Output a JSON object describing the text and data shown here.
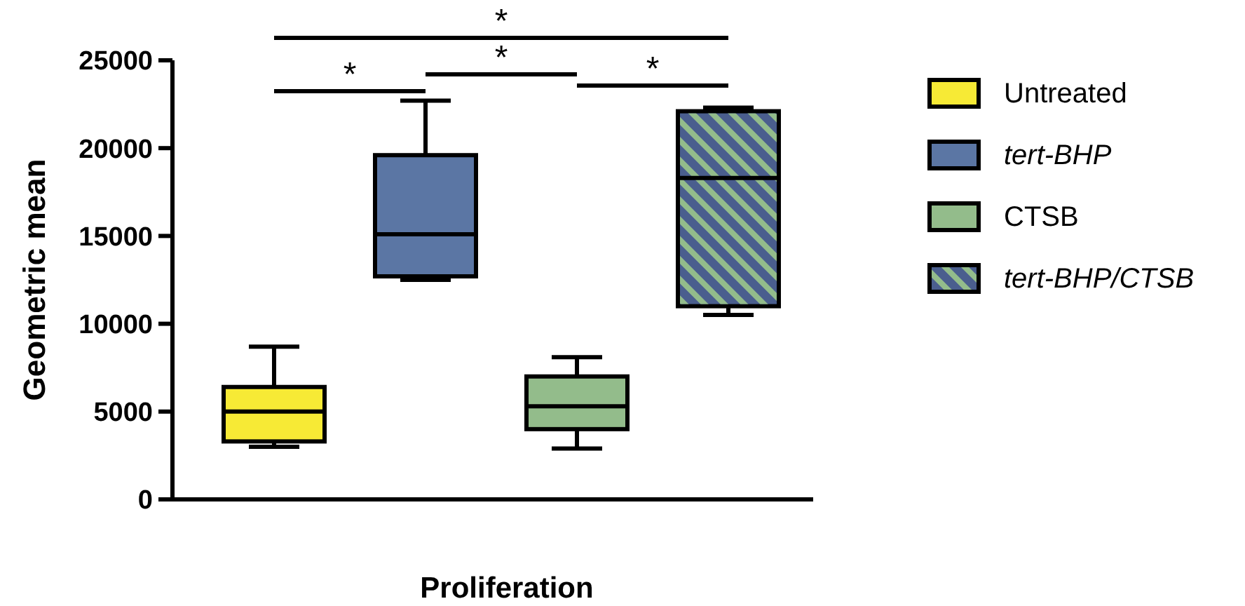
{
  "chart_data": {
    "type": "box",
    "xlabel": "Proliferation",
    "ylabel": "Geometric mean",
    "categories": [
      null
    ],
    "ylim": [
      0,
      25000
    ],
    "yticks": [
      0,
      5000,
      10000,
      15000,
      20000,
      25000
    ],
    "grid": false,
    "legend": "right",
    "annotations": [
      "*",
      "*",
      "*",
      "*"
    ],
    "series": [
      {
        "name": "Untreated",
        "color": "#f7ea35",
        "boxes": [
          {
            "low": 3000,
            "q1": 3300,
            "median": 5000,
            "q3": 6400,
            "high": 8700
          }
        ]
      },
      {
        "name": "tert-BHP",
        "color": "#5b76a4",
        "boxes": [
          {
            "low": 12500,
            "q1": 12700,
            "median": 15100,
            "q3": 19600,
            "high": 22700
          }
        ]
      },
      {
        "name": "CTSB",
        "color": "#93bc8b",
        "boxes": [
          {
            "low": 2900,
            "q1": 4000,
            "median": 5300,
            "q3": 7000,
            "high": 8100
          }
        ]
      },
      {
        "name": "tert-BHP/CTSB",
        "color": "#4a5e8e",
        "boxes": [
          {
            "low": 10500,
            "q1": 11000,
            "median": 18300,
            "q3": 22100,
            "high": 22300
          }
        ]
      }
    ]
  }
}
